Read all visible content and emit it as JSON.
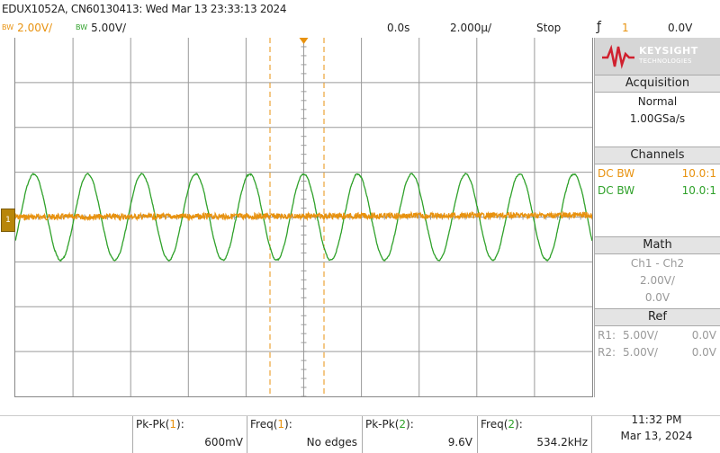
{
  "header": {
    "title": "EDUX1052A, CN60130413: Wed Mar 13 23:33:13 2024",
    "ch1_bw": "BW",
    "ch1_scale": "2.00V/",
    "ch2_bw": "BW",
    "ch2_scale": "5.00V/",
    "time_delay": "0.0s",
    "time_scale": "2.000µ/",
    "run_state": "Stop",
    "trigger_icon": "ƒ",
    "trigger_source": "1",
    "trigger_level": "0.0V"
  },
  "side_panel": {
    "brand": "KEYSIGHT",
    "brand_sub": "TECHNOLOGIES",
    "acquisition": {
      "title": "Acquisition",
      "mode": "Normal",
      "rate": "1.00GSa/s"
    },
    "channels": {
      "title": "Channels",
      "ch1_coupling": "DC BW",
      "ch1_probe": "10.0:1",
      "ch2_coupling": "DC BW",
      "ch2_probe": "10.0:1"
    },
    "math": {
      "title": "Math",
      "expr": "Ch1 - Ch2",
      "scale": "2.00V/",
      "offset": "0.0V"
    },
    "ref": {
      "title": "Ref",
      "r1_label": "R1:",
      "r1_scale": "5.00V/",
      "r1_offset": "0.0V",
      "r2_label": "R2:",
      "r2_scale": "5.00V/",
      "r2_offset": "0.0V"
    }
  },
  "measurements": [
    {
      "label_prefix": "Pk-Pk(",
      "channel": "1",
      "label_suffix": "):",
      "value": "600mV"
    },
    {
      "label_prefix": "Freq(",
      "channel": "1",
      "label_suffix": "):",
      "value": "No edges"
    },
    {
      "label_prefix": "Pk-Pk(",
      "channel": "2",
      "label_suffix": "):",
      "value": "9.6V"
    },
    {
      "label_prefix": "Freq(",
      "channel": "2",
      "label_suffix": "):",
      "value": "534.2kHz"
    }
  ],
  "clock": {
    "time": "11:32 PM",
    "date": "Mar 13, 2024"
  },
  "colors": {
    "ch1": "#e8920f",
    "ch2": "#2fa12a",
    "grid": "#9a9a9a",
    "cursor": "#e8920f",
    "trigger_marker": "#e8920f",
    "logo_red": "#d0202e"
  },
  "chart_data": {
    "type": "line",
    "title": "",
    "xlabel": "",
    "ylabel": "",
    "x_divisions": 10,
    "y_divisions": 8,
    "x_unit_per_div": "2.000µs",
    "series": [
      {
        "name": "1",
        "volts_per_div": 2.0,
        "amplitude_pk_pk_V": 0.6,
        "frequency_hz": null
      },
      {
        "name": "2",
        "volts_per_div": 5.0,
        "amplitude_pk_pk_V": 9.6,
        "frequency_hz": 534200
      }
    ]
  }
}
